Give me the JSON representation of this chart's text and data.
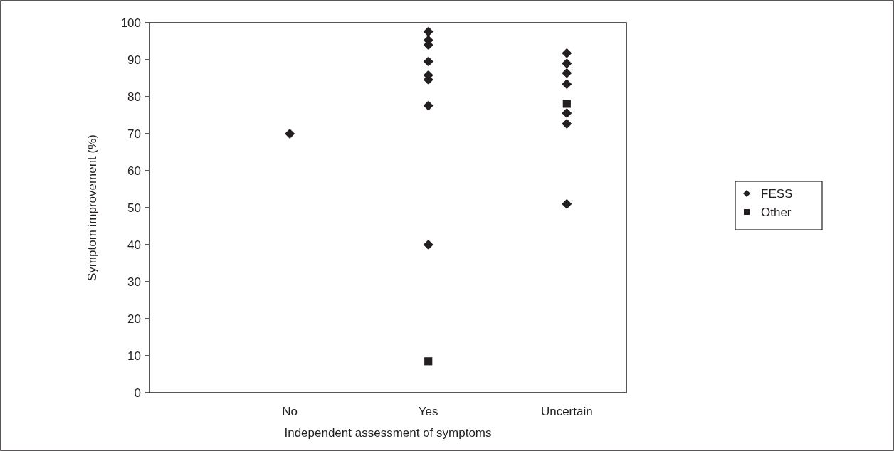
{
  "chart_data": {
    "type": "scatter",
    "xlabel": "Independent assessment of symptoms",
    "ylabel": "Symptom improvement (%)",
    "categories": [
      "No",
      "Yes",
      "Uncertain"
    ],
    "ylim": [
      0,
      100
    ],
    "yticks": [
      0,
      10,
      20,
      30,
      40,
      50,
      60,
      70,
      80,
      90,
      100
    ],
    "grid": false,
    "legend": "right",
    "series": [
      {
        "name": "FESS",
        "color": "#231f20",
        "marker": "diamond",
        "x": [
          "No",
          "Yes",
          "Yes",
          "Yes",
          "Yes",
          "Yes",
          "Yes",
          "Yes",
          "Yes",
          "Uncertain",
          "Uncertain",
          "Uncertain",
          "Uncertain",
          "Uncertain",
          "Uncertain",
          "Uncertain"
        ],
        "values": [
          70,
          97.6,
          95.3,
          94,
          89.5,
          85.8,
          84.6,
          77.6,
          40,
          91.8,
          89,
          86.4,
          83.4,
          75.6,
          72.7,
          51
        ]
      },
      {
        "name": "Other",
        "color": "#231f20",
        "marker": "square",
        "x": [
          "Yes",
          "Uncertain"
        ],
        "values": [
          8.5,
          78.1
        ]
      }
    ]
  }
}
